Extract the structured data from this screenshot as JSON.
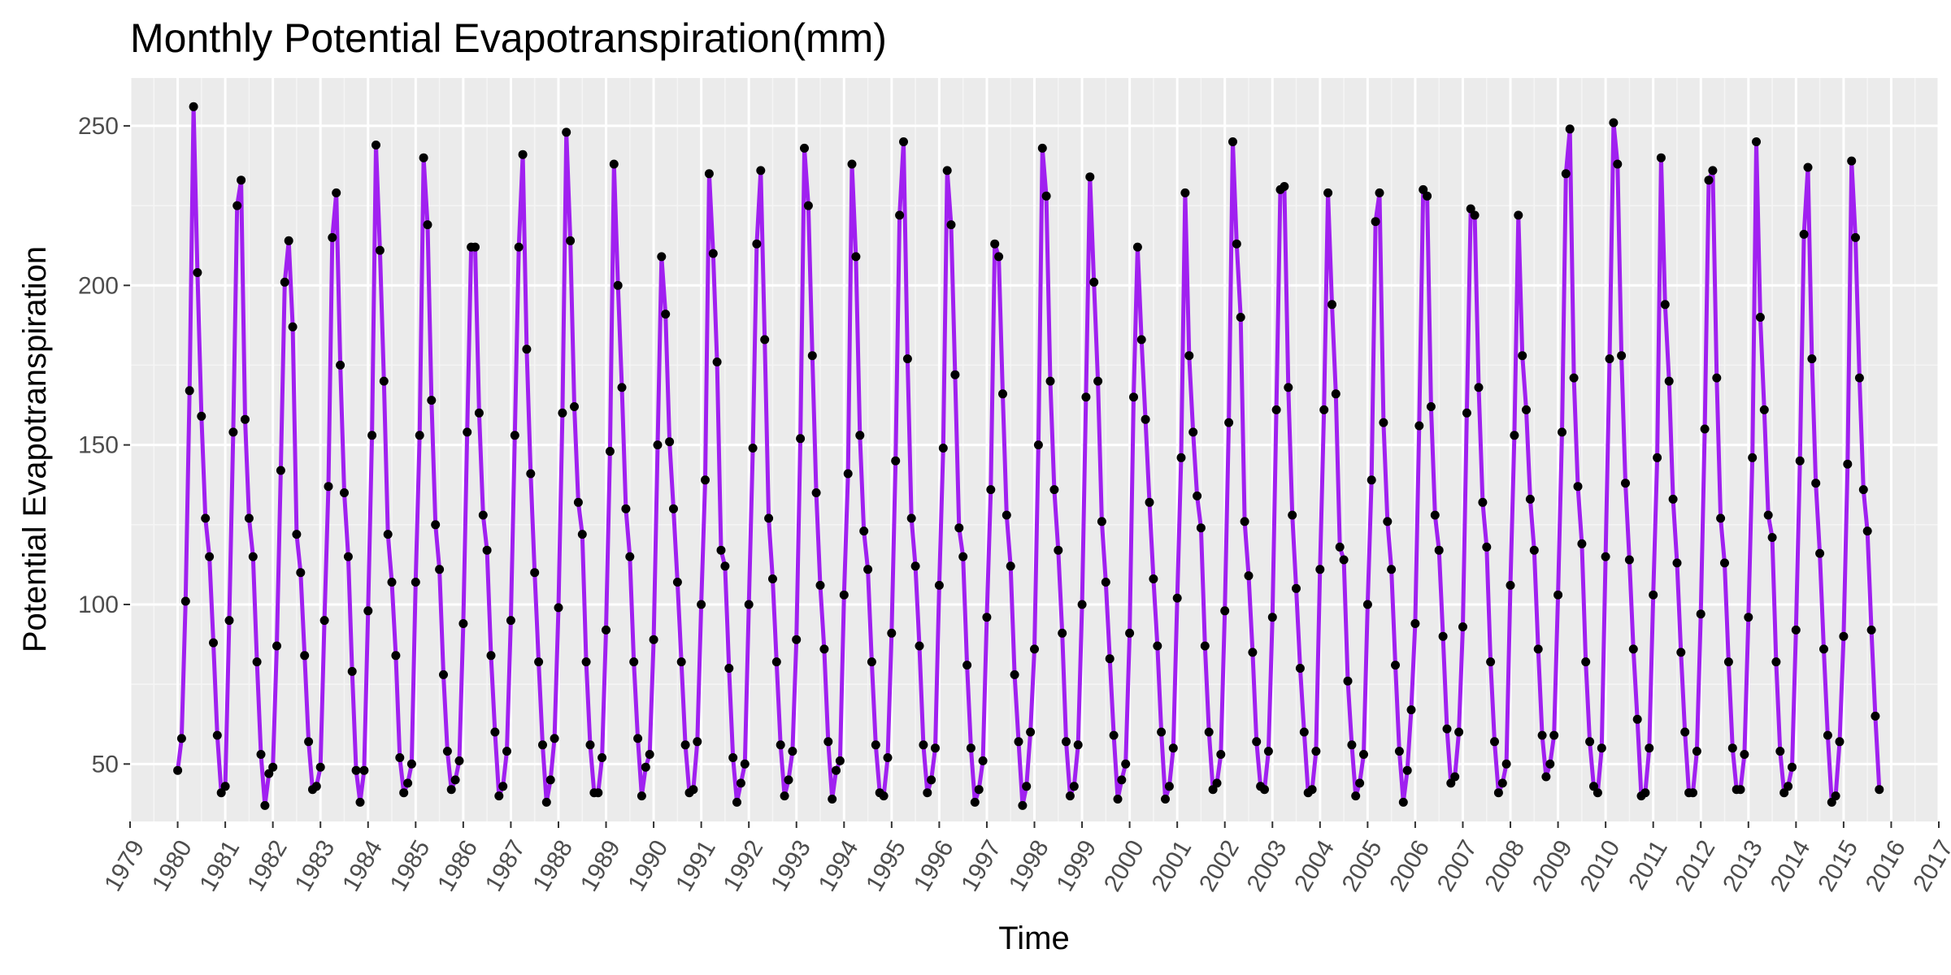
{
  "colors": {
    "panel_background": "#ebebeb",
    "grid_major": "#ffffff",
    "grid_minor": "#f5f5f5",
    "line": "#a020f0",
    "point": "#000000",
    "tick_text": "#4d4d4d"
  },
  "chart_data": {
    "type": "line",
    "title": "Monthly Potential Evapotranspiration(mm)",
    "xlabel": "Time",
    "ylabel": "Potential Evapotranspiration",
    "xlim": [
      1979,
      2017
    ],
    "ylim": [
      32,
      265
    ],
    "grid": true,
    "legend": "none",
    "x_ticks": [
      "1979",
      "1980",
      "1981",
      "1982",
      "1983",
      "1984",
      "1985",
      "1986",
      "1987",
      "1988",
      "1989",
      "1990",
      "1991",
      "1992",
      "1993",
      "1994",
      "1995",
      "1996",
      "1997",
      "1998",
      "1999",
      "2000",
      "2001",
      "2002",
      "2003",
      "2004",
      "2005",
      "2006",
      "2007",
      "2008",
      "2009",
      "2010",
      "2011",
      "2012",
      "2013",
      "2014",
      "2015",
      "2016",
      "2017"
    ],
    "y_ticks": [
      50,
      100,
      150,
      200,
      250
    ],
    "series": [
      {
        "start_year": 1980,
        "start_month": 1,
        "frequency": "monthly",
        "values": [
          48,
          58,
          101,
          167,
          256,
          204,
          159,
          127,
          115,
          88,
          59,
          41,
          43,
          95,
          154,
          225,
          233,
          158,
          127,
          115,
          82,
          53,
          37,
          47,
          49,
          87,
          142,
          201,
          214,
          187,
          122,
          110,
          84,
          57,
          42,
          43,
          49,
          95,
          137,
          215,
          229,
          175,
          135,
          115,
          79,
          48,
          38,
          48,
          98,
          153,
          244,
          211,
          170,
          122,
          107,
          84,
          52,
          41,
          44,
          50,
          107,
          153,
          240,
          219,
          164,
          125,
          111,
          78,
          54,
          42,
          45,
          51,
          94,
          154,
          212,
          212,
          160,
          128,
          117,
          84,
          60,
          40,
          43,
          54,
          95,
          153,
          212,
          241,
          180,
          141,
          110,
          82,
          56,
          38,
          45,
          58,
          99,
          160,
          248,
          214,
          162,
          132,
          122,
          82,
          56,
          41,
          41,
          52,
          92,
          148,
          238,
          200,
          168,
          130,
          115,
          82,
          58,
          40,
          49,
          53,
          89,
          150,
          209,
          191,
          151,
          130,
          107,
          82,
          56,
          41,
          42,
          57,
          100,
          139,
          235,
          210,
          176,
          117,
          112,
          80,
          52,
          38,
          44,
          50,
          100,
          149,
          213,
          236,
          183,
          127,
          108,
          82,
          56,
          40,
          45,
          54,
          89,
          152,
          243,
          225,
          178,
          135,
          106,
          86,
          57,
          39,
          48,
          51,
          103,
          141,
          238,
          209,
          153,
          123,
          111,
          82,
          56,
          41,
          40,
          52,
          91,
          145,
          222,
          245,
          177,
          127,
          112,
          87,
          56,
          41,
          45,
          55,
          106,
          149,
          236,
          219,
          172,
          124,
          115,
          81,
          55,
          38,
          42,
          51,
          96,
          136,
          213,
          209,
          166,
          128,
          112,
          78,
          57,
          37,
          43,
          60,
          86,
          150,
          243,
          228,
          170,
          136,
          117,
          91,
          57,
          40,
          43,
          56,
          100,
          165,
          234,
          201,
          170,
          126,
          107,
          83,
          59,
          39,
          45,
          50,
          91,
          165,
          212,
          183,
          158,
          132,
          108,
          87,
          60,
          39,
          43,
          55,
          102,
          146,
          229,
          178,
          154,
          134,
          124,
          87,
          60,
          42,
          44,
          53,
          98,
          157,
          245,
          213,
          190,
          126,
          109,
          85,
          57,
          43,
          42,
          54,
          96,
          161,
          230,
          231,
          168,
          128,
          105,
          80,
          60,
          41,
          42,
          54,
          111,
          161,
          229,
          194,
          166,
          118,
          114,
          76,
          56,
          40,
          44,
          53,
          100,
          139,
          220,
          229,
          157,
          126,
          111,
          81,
          54,
          38,
          48,
          67,
          94,
          156,
          230,
          228,
          162,
          128,
          117,
          90,
          61,
          44,
          46,
          60,
          93,
          160,
          224,
          222,
          168,
          132,
          118,
          82,
          57,
          41,
          44,
          50,
          106,
          153,
          222,
          178,
          161,
          133,
          117,
          86,
          59,
          46,
          50,
          59,
          103,
          154,
          235,
          249,
          171,
          137,
          119,
          82,
          57,
          43,
          41,
          55,
          115,
          177,
          251,
          238,
          178,
          138,
          114,
          86,
          64,
          40,
          41,
          55,
          103,
          146,
          240,
          194,
          170,
          133,
          113,
          85,
          60,
          41,
          41,
          54,
          97,
          155,
          233,
          236,
          171,
          127,
          113,
          82,
          55,
          42,
          42,
          53,
          96,
          146,
          245,
          190,
          161,
          128,
          121,
          82,
          54,
          41,
          43,
          49,
          92,
          145,
          216,
          237,
          177,
          138,
          116,
          86,
          59,
          38,
          40,
          57,
          90,
          144,
          239,
          215,
          171,
          136,
          123,
          92,
          65,
          42
        ]
      }
    ]
  }
}
